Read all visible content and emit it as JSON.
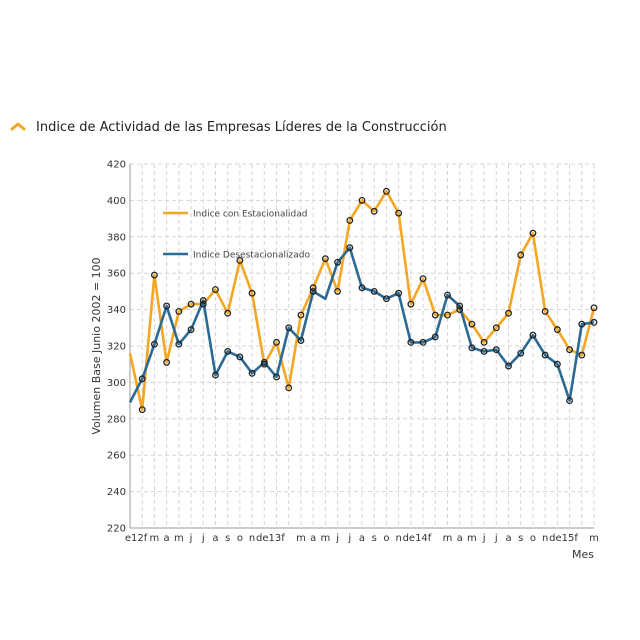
{
  "title": "Indice de Actividad de las Empresas Líderes de la Construcción",
  "colors": {
    "orange": "#f5a623",
    "blue": "#2b6a94",
    "grid": "#d4d4d4",
    "marker": "#222222"
  },
  "chart_data": {
    "type": "line",
    "xlabel": "Mes",
    "ylabel": "Volumen Base Junio 2002 = 100",
    "ylim": [
      220,
      420
    ],
    "yticks": [
      220,
      240,
      260,
      280,
      300,
      320,
      340,
      360,
      380,
      400,
      420
    ],
    "grid": true,
    "legend_position": "top-left",
    "x": [
      "e12",
      "f",
      "m",
      "a",
      "m",
      "j",
      "j",
      "a",
      "s",
      "o",
      "n",
      "d",
      "e13",
      "f",
      "m",
      "a",
      "m",
      "j",
      "j",
      "a",
      "s",
      "o",
      "n",
      "d",
      "e14",
      "f",
      "m",
      "a",
      "m",
      "j",
      "j",
      "a",
      "s",
      "o",
      "n",
      "d",
      "e15",
      "f",
      "m"
    ],
    "x_tick_labels": [
      "e12f",
      "m",
      "a",
      "m",
      "j",
      "j",
      "a",
      "s",
      "o",
      "n",
      "de13f",
      "m",
      "a",
      "m",
      "j",
      "j",
      "a",
      "s",
      "o",
      "n",
      "de14f",
      "m",
      "a",
      "m",
      "j",
      "j",
      "a",
      "s",
      "o",
      "n",
      "de15f",
      "m"
    ],
    "series": [
      {
        "name": "Indice con Estacionalidad",
        "color": "#f5a623",
        "values": [
          316,
          285,
          359,
          311,
          339,
          343,
          343,
          351,
          338,
          367,
          349,
          310,
          322,
          297,
          337,
          352,
          368,
          350,
          389,
          400,
          394,
          405,
          393,
          343,
          357,
          337,
          337,
          340,
          332,
          322,
          330,
          338,
          370,
          382,
          339,
          329,
          318,
          315,
          341
        ]
      },
      {
        "name": "Indice Desestacionalizado",
        "color": "#2b6a94",
        "values": [
          289,
          302,
          321,
          342,
          321,
          329,
          345,
          304,
          317,
          314,
          305,
          311,
          303,
          330,
          323,
          350,
          346,
          366,
          374,
          352,
          350,
          346,
          349,
          322,
          322,
          325,
          348,
          342,
          319,
          317,
          318,
          309,
          316,
          326,
          315,
          310,
          290,
          332,
          333
        ]
      }
    ]
  }
}
